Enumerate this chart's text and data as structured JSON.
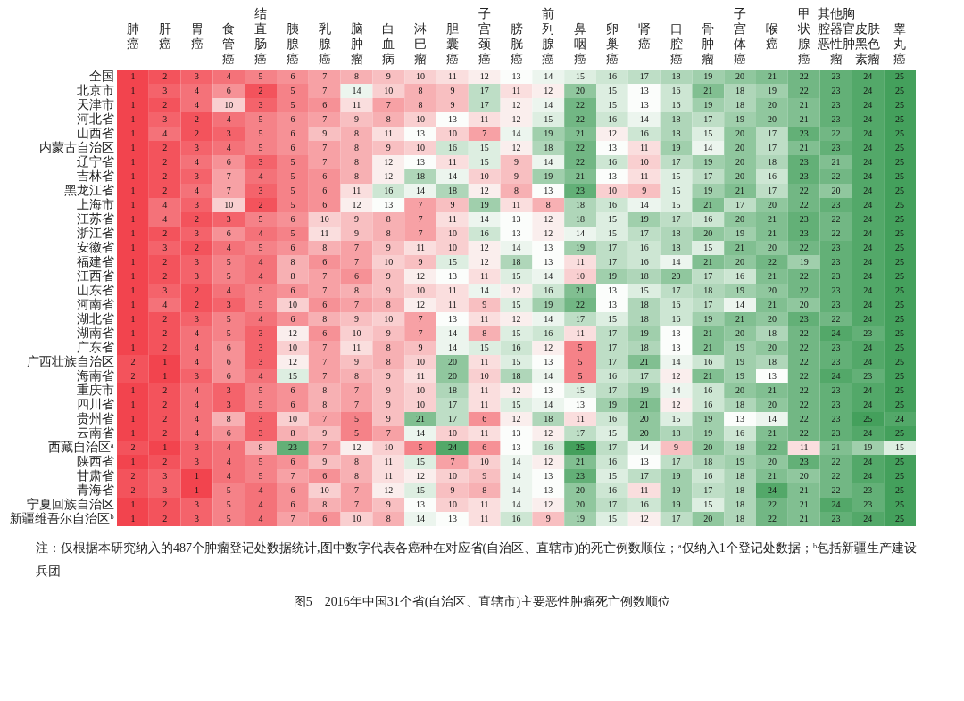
{
  "chart_data": {
    "type": "heatmap",
    "data_labels": true,
    "title": "图5　2016年中国31个省(自治区、直辖市)主要恶性肿瘤死亡例数顺位",
    "annotations": [
      "注：仅根据本研究纳入的487个肿瘤登记处数据统计,图中数字代表各癌种在对应省(自治区、直辖市)的死亡例数顺位；ᵃ仅纳入1个登记处数据；ᵇ包括新疆生产建设兵团"
    ],
    "categories": [
      "肺癌",
      "肝癌",
      "胃癌",
      "食管癌",
      "结直肠癌",
      "胰腺癌",
      "乳腺癌",
      "脑肿瘤",
      "白血病",
      "淋巴瘤",
      "胆囊癌",
      "子宫颈癌",
      "膀胱癌",
      "前列腺癌",
      "鼻咽癌",
      "卵巢癌",
      "肾癌",
      "口腔癌",
      "骨肿瘤",
      "子宫体癌",
      "喉癌",
      "甲状腺癌",
      "其他胸腔器官恶性肿瘤",
      "皮肤黑色素瘤",
      "睾丸癌"
    ],
    "y_categories": [
      "全国",
      "北京市",
      "天津市",
      "河北省",
      "山西省",
      "内蒙古自治区",
      "辽宁省",
      "吉林省",
      "黑龙江省",
      "上海市",
      "江苏省",
      "浙江省",
      "安徽省",
      "福建省",
      "江西省",
      "山东省",
      "河南省",
      "湖北省",
      "湖南省",
      "广东省",
      "广西壮族自治区",
      "海南省",
      "重庆市",
      "四川省",
      "贵州省",
      "云南省",
      "西藏自治区ᵃ",
      "陕西省",
      "甘肃省",
      "青海省",
      "宁夏回族自治区",
      "新疆维吾尔自治区ᵇ"
    ],
    "cells": [
      [
        1,
        2,
        3,
        4,
        5,
        6,
        7,
        8,
        9,
        10,
        11,
        12,
        13,
        14,
        15,
        16,
        17,
        18,
        19,
        20,
        21,
        22,
        23,
        24,
        25
      ],
      [
        1,
        3,
        4,
        6,
        2,
        5,
        7,
        14,
        10,
        8,
        9,
        17,
        11,
        12,
        20,
        15,
        13,
        16,
        21,
        18,
        19,
        22,
        23,
        24,
        25
      ],
      [
        1,
        2,
        4,
        10,
        3,
        5,
        6,
        11,
        7,
        8,
        9,
        17,
        12,
        14,
        22,
        15,
        13,
        16,
        19,
        18,
        20,
        21,
        23,
        24,
        25
      ],
      [
        1,
        3,
        2,
        4,
        5,
        6,
        7,
        9,
        8,
        10,
        13,
        11,
        12,
        15,
        22,
        16,
        14,
        18,
        17,
        19,
        20,
        21,
        23,
        24,
        25
      ],
      [
        1,
        4,
        2,
        3,
        5,
        6,
        9,
        8,
        11,
        13,
        10,
        7,
        14,
        19,
        21,
        12,
        16,
        18,
        15,
        20,
        17,
        23,
        22,
        24,
        25
      ],
      [
        1,
        2,
        3,
        4,
        5,
        6,
        7,
        8,
        9,
        10,
        16,
        15,
        12,
        18,
        22,
        13,
        11,
        19,
        14,
        20,
        17,
        21,
        23,
        24,
        25
      ],
      [
        1,
        2,
        4,
        6,
        3,
        5,
        7,
        8,
        12,
        13,
        11,
        15,
        9,
        14,
        22,
        16,
        10,
        17,
        19,
        20,
        18,
        23,
        21,
        24,
        25
      ],
      [
        1,
        2,
        3,
        7,
        4,
        5,
        6,
        8,
        12,
        18,
        14,
        10,
        9,
        19,
        21,
        13,
        11,
        15,
        17,
        20,
        16,
        23,
        22,
        24,
        25
      ],
      [
        1,
        2,
        4,
        7,
        3,
        5,
        6,
        11,
        16,
        14,
        18,
        12,
        8,
        13,
        23,
        10,
        9,
        15,
        19,
        21,
        17,
        22,
        20,
        24,
        25
      ],
      [
        1,
        4,
        3,
        10,
        2,
        5,
        6,
        12,
        13,
        7,
        9,
        19,
        11,
        8,
        18,
        16,
        14,
        15,
        21,
        17,
        20,
        22,
        23,
        24,
        25
      ],
      [
        1,
        4,
        2,
        3,
        5,
        6,
        10,
        9,
        8,
        7,
        11,
        14,
        13,
        12,
        18,
        15,
        19,
        17,
        16,
        20,
        21,
        23,
        22,
        24,
        25
      ],
      [
        1,
        2,
        3,
        6,
        4,
        5,
        11,
        9,
        8,
        7,
        10,
        16,
        13,
        12,
        14,
        15,
        17,
        18,
        20,
        19,
        21,
        23,
        22,
        24,
        25
      ],
      [
        1,
        3,
        2,
        4,
        5,
        6,
        8,
        7,
        9,
        11,
        10,
        12,
        14,
        13,
        19,
        17,
        16,
        18,
        15,
        21,
        20,
        22,
        23,
        24,
        25
      ],
      [
        1,
        2,
        3,
        5,
        4,
        8,
        6,
        7,
        10,
        9,
        15,
        12,
        18,
        13,
        11,
        17,
        16,
        14,
        21,
        20,
        22,
        19,
        23,
        24,
        25
      ],
      [
        1,
        2,
        3,
        5,
        4,
        8,
        7,
        6,
        9,
        12,
        13,
        11,
        15,
        14,
        10,
        19,
        18,
        20,
        17,
        16,
        21,
        22,
        23,
        24,
        25
      ],
      [
        1,
        3,
        2,
        4,
        5,
        6,
        7,
        8,
        9,
        10,
        11,
        14,
        12,
        16,
        21,
        13,
        15,
        17,
        18,
        19,
        20,
        22,
        23,
        24,
        25
      ],
      [
        1,
        4,
        2,
        3,
        5,
        10,
        6,
        7,
        8,
        12,
        11,
        9,
        15,
        19,
        22,
        13,
        18,
        16,
        17,
        14,
        21,
        20,
        23,
        24,
        25
      ],
      [
        1,
        2,
        3,
        5,
        4,
        6,
        8,
        9,
        10,
        7,
        13,
        11,
        12,
        14,
        17,
        15,
        18,
        16,
        19,
        21,
        20,
        23,
        22,
        24,
        25
      ],
      [
        1,
        2,
        4,
        5,
        3,
        12,
        6,
        10,
        9,
        7,
        14,
        8,
        15,
        16,
        11,
        17,
        19,
        13,
        21,
        20,
        18,
        22,
        24,
        23,
        25
      ],
      [
        1,
        2,
        4,
        6,
        3,
        10,
        7,
        11,
        8,
        9,
        14,
        15,
        16,
        12,
        5,
        17,
        18,
        13,
        21,
        19,
        20,
        22,
        23,
        24,
        25
      ],
      [
        2,
        1,
        4,
        6,
        3,
        12,
        7,
        9,
        8,
        10,
        20,
        11,
        15,
        13,
        5,
        17,
        21,
        14,
        16,
        19,
        18,
        22,
        23,
        24,
        25
      ],
      [
        2,
        1,
        3,
        6,
        4,
        15,
        7,
        8,
        9,
        11,
        20,
        10,
        18,
        14,
        5,
        16,
        17,
        12,
        21,
        19,
        13,
        22,
        24,
        23,
        25
      ],
      [
        1,
        2,
        4,
        3,
        5,
        6,
        8,
        7,
        9,
        10,
        18,
        11,
        12,
        13,
        15,
        17,
        19,
        14,
        16,
        20,
        21,
        22,
        23,
        24,
        25
      ],
      [
        1,
        2,
        4,
        3,
        5,
        6,
        8,
        7,
        9,
        10,
        17,
        11,
        15,
        14,
        13,
        19,
        21,
        12,
        16,
        18,
        20,
        22,
        23,
        24,
        25
      ],
      [
        1,
        2,
        4,
        8,
        3,
        10,
        7,
        5,
        9,
        21,
        17,
        6,
        12,
        18,
        11,
        16,
        20,
        15,
        19,
        13,
        14,
        22,
        23,
        25,
        24
      ],
      [
        1,
        2,
        4,
        6,
        3,
        8,
        9,
        5,
        7,
        14,
        10,
        11,
        13,
        12,
        17,
        15,
        20,
        18,
        19,
        16,
        21,
        22,
        23,
        24,
        25
      ],
      [
        2,
        1,
        3,
        4,
        8,
        23,
        7,
        12,
        10,
        5,
        24,
        6,
        13,
        16,
        25,
        17,
        14,
        9,
        20,
        18,
        22,
        11,
        21,
        19,
        15
      ],
      [
        1,
        2,
        3,
        4,
        5,
        6,
        9,
        8,
        11,
        15,
        7,
        10,
        14,
        12,
        21,
        16,
        13,
        17,
        18,
        19,
        20,
        23,
        22,
        24,
        25
      ],
      [
        2,
        3,
        1,
        4,
        5,
        7,
        6,
        8,
        11,
        12,
        10,
        9,
        14,
        13,
        23,
        15,
        17,
        19,
        16,
        18,
        21,
        20,
        22,
        24,
        25
      ],
      [
        2,
        3,
        1,
        5,
        4,
        6,
        10,
        7,
        12,
        15,
        9,
        8,
        14,
        13,
        20,
        16,
        11,
        19,
        17,
        18,
        24,
        21,
        22,
        23,
        25
      ],
      [
        1,
        2,
        3,
        5,
        4,
        6,
        8,
        7,
        9,
        13,
        10,
        11,
        14,
        12,
        20,
        17,
        16,
        19,
        15,
        18,
        22,
        21,
        24,
        23,
        25
      ],
      [
        1,
        2,
        3,
        5,
        4,
        7,
        6,
        10,
        8,
        14,
        13,
        11,
        16,
        9,
        19,
        15,
        12,
        17,
        20,
        18,
        22,
        21,
        23,
        24,
        25
      ]
    ]
  }
}
